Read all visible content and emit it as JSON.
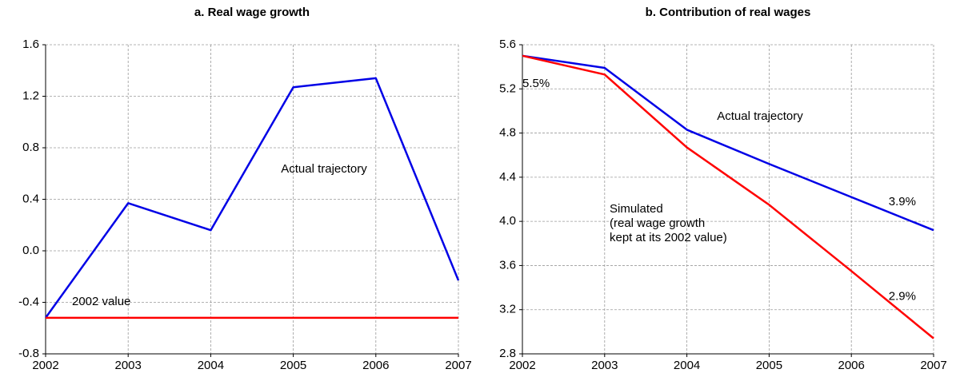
{
  "chart_data": [
    {
      "type": "line",
      "title": "a. Real wage growth",
      "x": [
        2002,
        2003,
        2004,
        2005,
        2006,
        2007
      ],
      "xlim": [
        2002,
        2007
      ],
      "xticks": [
        2002,
        2003,
        2004,
        2005,
        2006,
        2007
      ],
      "ylim": [
        -0.8,
        1.6
      ],
      "yticks": [
        -0.8,
        -0.4,
        {
          "value": 0,
          "label": "0.0"
        },
        0.4,
        0.8,
        1.2,
        1.6
      ],
      "grid": true,
      "series": [
        {
          "name": "Actual trajectory",
          "color": "#0000e6",
          "values": [
            -0.52,
            0.37,
            0.16,
            1.27,
            1.34,
            -0.23
          ]
        },
        {
          "name": "2002 value",
          "color": "#ff0000",
          "values": [
            -0.52,
            -0.52,
            -0.52,
            -0.52,
            -0.52,
            -0.52
          ]
        }
      ]
    },
    {
      "type": "line",
      "title": "b. Contribution of real wages",
      "x": [
        2002,
        2003,
        2004,
        2005,
        2006,
        2007
      ],
      "xlim": [
        2002,
        2007
      ],
      "xticks": [
        2002,
        2003,
        2004,
        2005,
        2006,
        2007
      ],
      "ylim": [
        2.8,
        5.6
      ],
      "yticks": [
        2.8,
        3.2,
        3.6,
        {
          "value": 4,
          "label": "4.0"
        },
        4.4,
        4.8,
        5.2,
        5.6
      ],
      "grid": true,
      "series": [
        {
          "name": "Actual trajectory",
          "color": "#0000e6",
          "values": [
            5.5,
            5.39,
            4.83,
            4.52,
            4.22,
            3.92
          ],
          "value_labels": [
            "5.5%",
            null,
            null,
            null,
            null,
            "3.9%"
          ]
        },
        {
          "name": "Simulated\n(real wage growth\nkept at its 2002 value)",
          "color": "#ff0000",
          "values": [
            5.5,
            5.33,
            4.67,
            4.15,
            3.55,
            2.94
          ],
          "value_labels": [
            null,
            null,
            null,
            null,
            null,
            "2.9%"
          ]
        }
      ]
    }
  ]
}
